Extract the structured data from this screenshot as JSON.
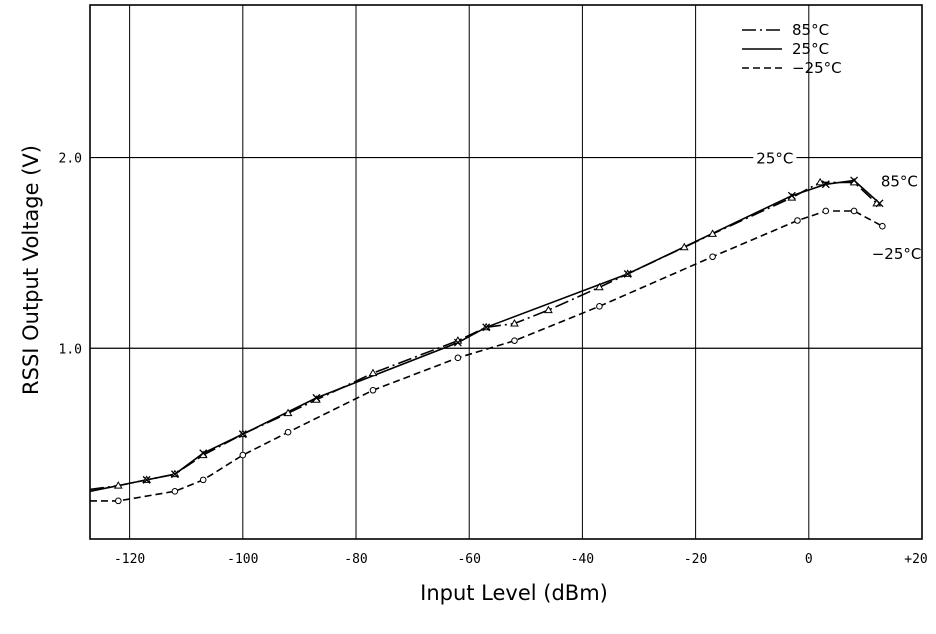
{
  "chart_data": {
    "type": "line",
    "title": "",
    "xlabel": "Input Level (dBm)",
    "ylabel": "RSSI Output Voltage (V)",
    "xlim": [
      -127,
      20
    ],
    "ylim": [
      0,
      2.8
    ],
    "x_ticks": [
      -120,
      -100,
      -80,
      -60,
      -40,
      -20,
      0,
      20
    ],
    "x_tick_labels": [
      "-120",
      "-100",
      "-80",
      "-60",
      "-40",
      "-20",
      "0",
      "+20"
    ],
    "y_ticks": [
      1.0,
      2.0
    ],
    "y_tick_labels": [
      "1.0",
      "2.0"
    ],
    "grid": true,
    "legend_position": "top-right",
    "series": [
      {
        "name": "85°C",
        "style": "dash-dot",
        "marker": "triangle",
        "x": [
          -127,
          -122,
          -117,
          -112,
          -107,
          -100,
          -92,
          -87,
          -77,
          -62,
          -57,
          -52,
          -46,
          -37,
          -32,
          -22,
          -17,
          -3,
          2,
          8,
          12
        ],
        "y": [
          0.26,
          0.28,
          0.31,
          0.34,
          0.44,
          0.55,
          0.66,
          0.73,
          0.87,
          1.04,
          1.11,
          1.13,
          1.2,
          1.32,
          1.39,
          1.53,
          1.6,
          1.79,
          1.87,
          1.87,
          1.76
        ]
      },
      {
        "name": "25°C",
        "style": "solid",
        "marker": "x",
        "x": [
          -127,
          -117,
          -112,
          -107,
          -100,
          -87,
          -62,
          -57,
          -32,
          -3,
          3,
          8,
          12.5
        ],
        "y": [
          0.25,
          0.31,
          0.34,
          0.45,
          0.55,
          0.74,
          1.03,
          1.11,
          1.39,
          1.8,
          1.86,
          1.88,
          1.76
        ]
      },
      {
        "name": "−25°C",
        "style": "dashed",
        "marker": "circle",
        "x": [
          -127,
          -122,
          -112,
          -107,
          -100,
          -92,
          -77,
          -62,
          -52,
          -37,
          -17,
          -2,
          3,
          8,
          13
        ],
        "y": [
          0.2,
          0.2,
          0.25,
          0.31,
          0.44,
          0.56,
          0.78,
          0.95,
          1.04,
          1.22,
          1.48,
          1.67,
          1.72,
          1.72,
          1.64
        ]
      }
    ],
    "annotations": [
      {
        "text": "25°C",
        "x": -6,
        "y": 2.0
      },
      {
        "text": "85°C",
        "x": 16,
        "y": 1.88
      },
      {
        "text": "−25°C",
        "x": 15.5,
        "y": 1.5
      }
    ]
  }
}
